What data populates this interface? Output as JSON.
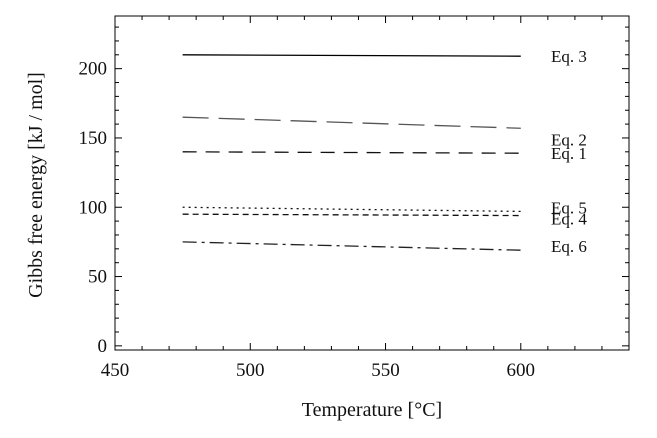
{
  "chart_data": {
    "type": "line",
    "xlabel": "Temperature [°C]",
    "ylabel": "Gibbs free energy [kJ / mol]",
    "xlim": [
      450,
      640
    ],
    "ylim": [
      -3,
      238
    ],
    "xticks": [
      450,
      500,
      550,
      600
    ],
    "yticks": [
      0,
      50,
      100,
      150,
      200
    ],
    "grid": false,
    "series": [
      {
        "name": "Eq. 3",
        "x": [
          475,
          600
        ],
        "y": [
          210,
          209
        ],
        "dash": "solid",
        "color": "#000000"
      },
      {
        "name": "Eq. 2",
        "x": [
          475,
          600
        ],
        "y": [
          165,
          157
        ],
        "dash": "long-dash",
        "color": "#555555"
      },
      {
        "name": "Eq. 1",
        "x": [
          475,
          600
        ],
        "y": [
          140,
          139
        ],
        "dash": "dash",
        "color": "#111111"
      },
      {
        "name": "Eq. 5",
        "x": [
          475,
          600
        ],
        "y": [
          100,
          97
        ],
        "dash": "dot",
        "color": "#111111"
      },
      {
        "name": "Eq. 4",
        "x": [
          475,
          600
        ],
        "y": [
          95,
          94
        ],
        "dash": "short-dash",
        "color": "#111111"
      },
      {
        "name": "Eq. 6",
        "x": [
          475,
          600
        ],
        "y": [
          75,
          69
        ],
        "dash": "dash-dot",
        "color": "#222222"
      }
    ]
  }
}
